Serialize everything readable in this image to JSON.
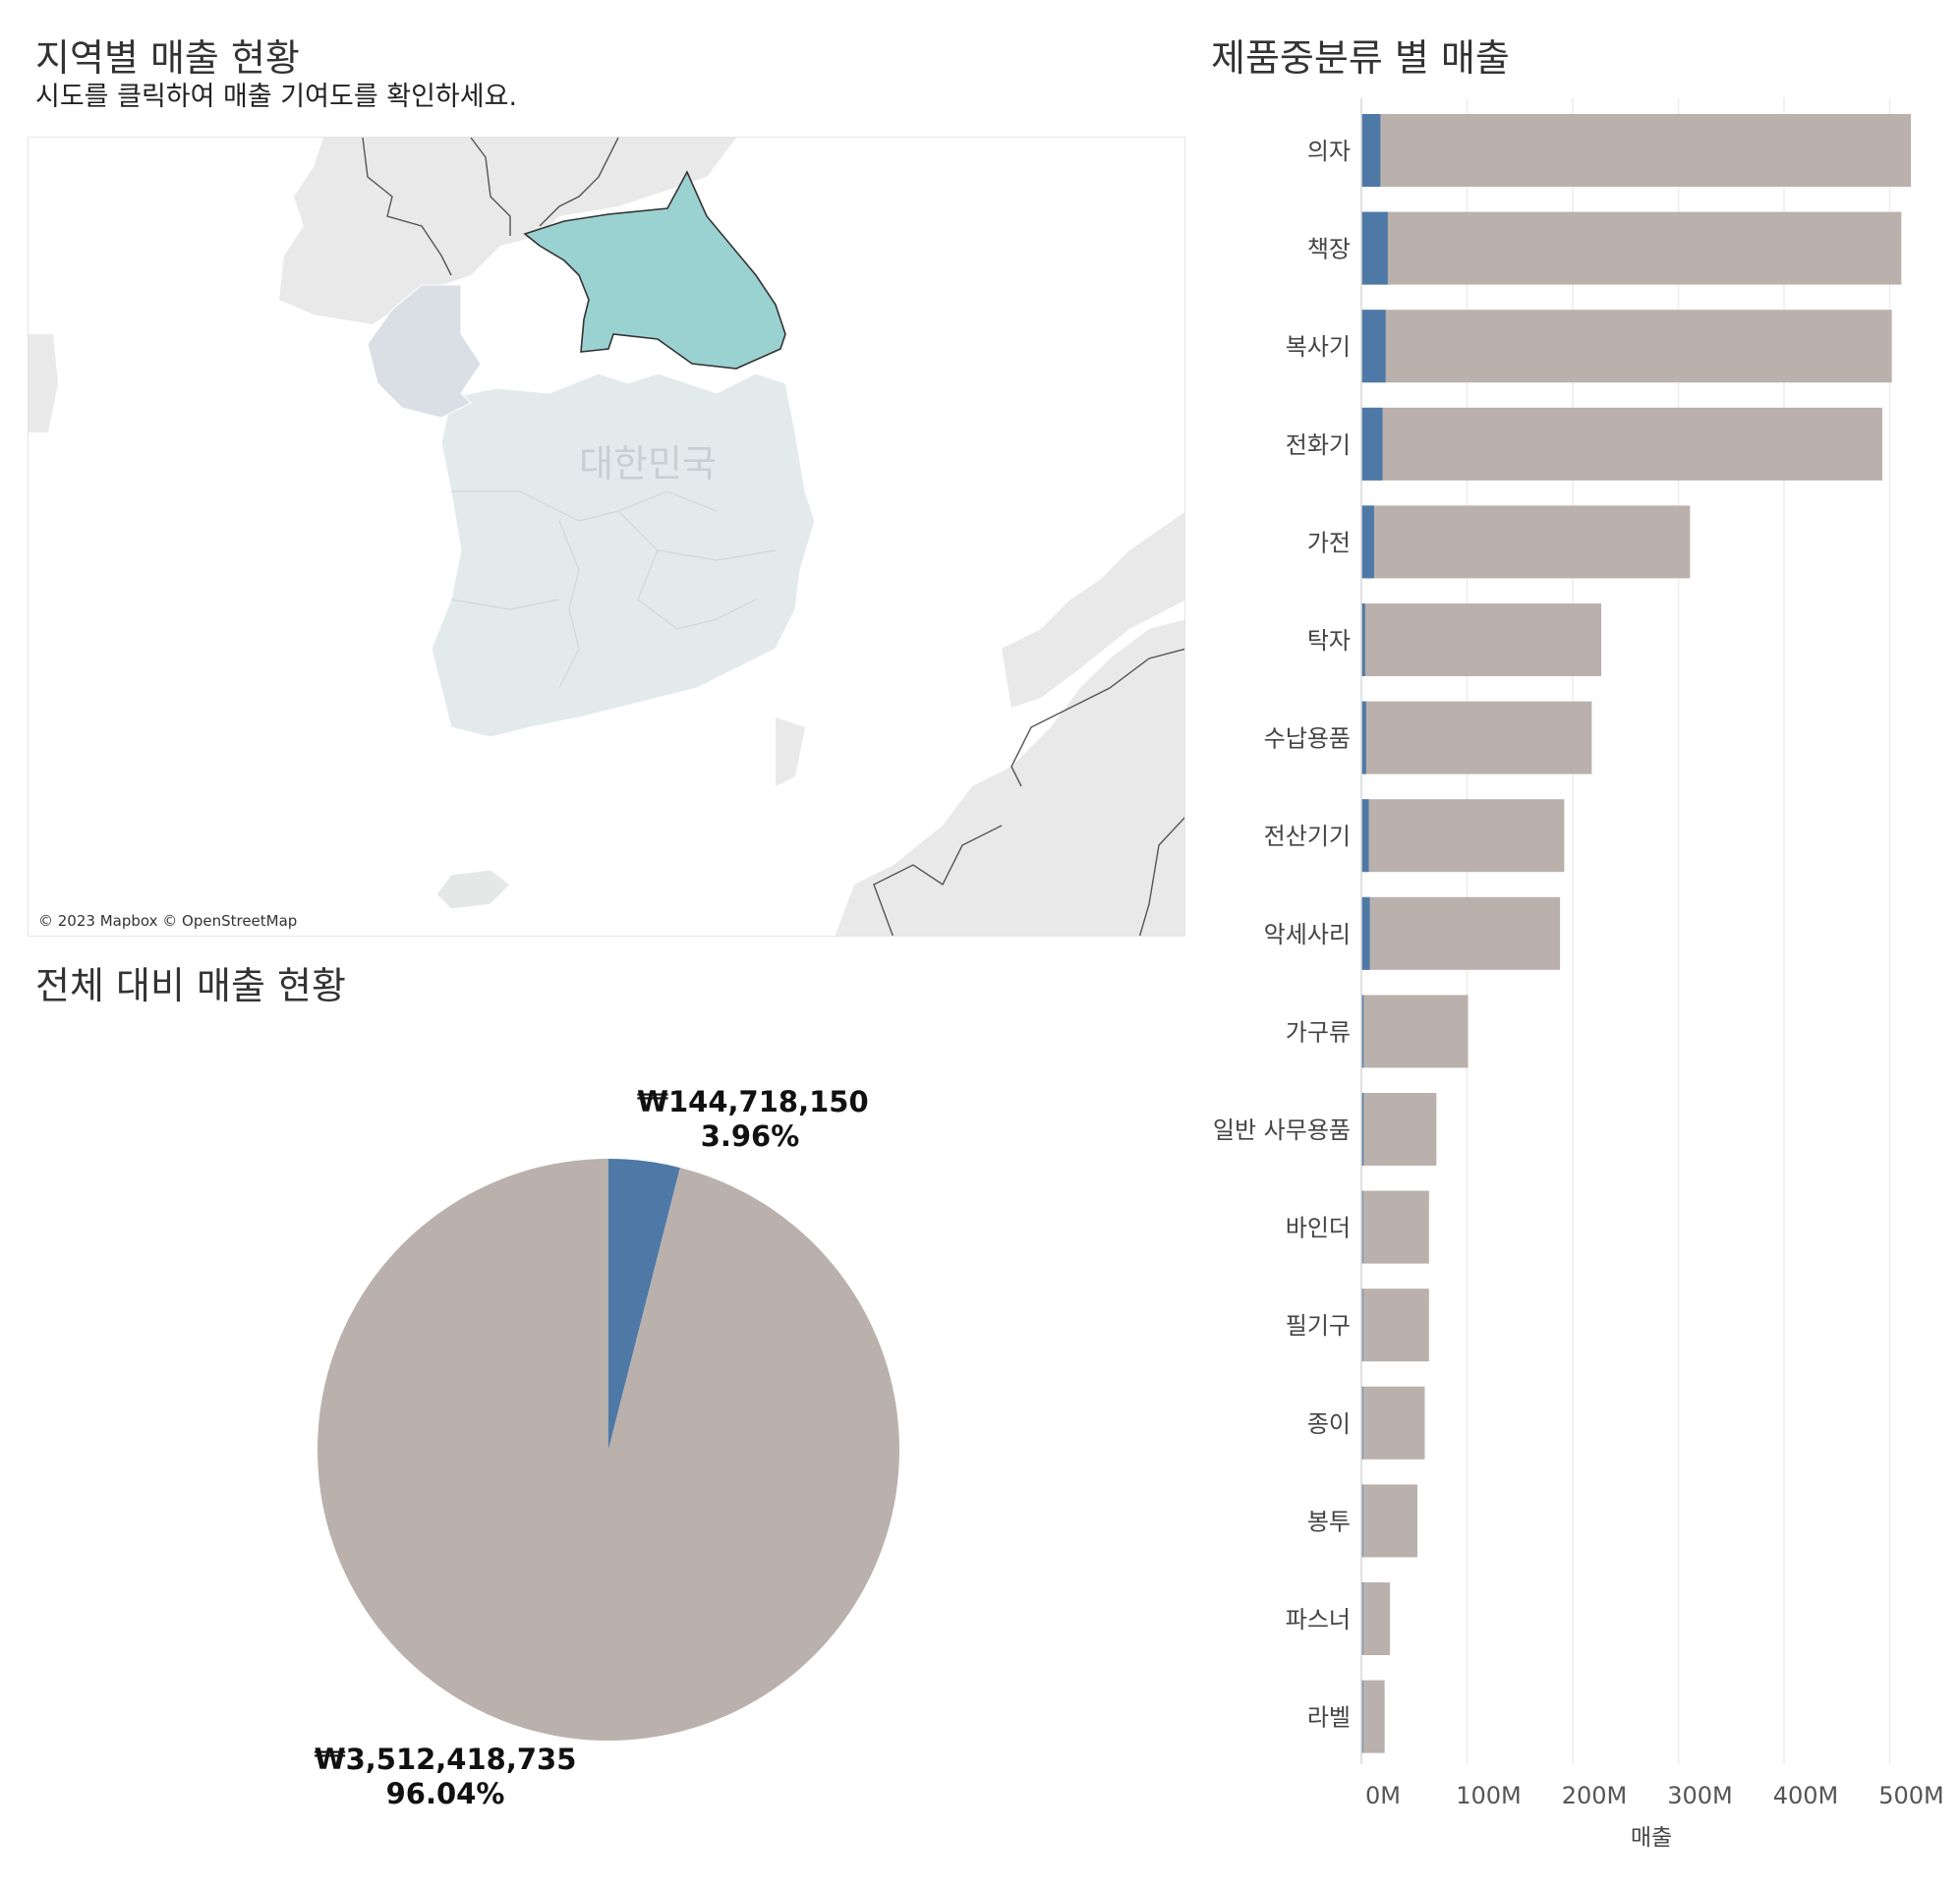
{
  "map_section": {
    "title": "지역별 매출 현황",
    "subtitle": "시도를 클릭하여 매출 기여도를 확인하세요.",
    "country_label": "대한민국",
    "attribution": "© 2023 Mapbox © OpenStreetMap",
    "selected_region_color": "#9ad2d2",
    "region_color": "#e2eaec"
  },
  "pie_section": {
    "title": "전체 대비 매출 현황",
    "selected": {
      "amount": "₩144,718,150",
      "percent": "3.96%",
      "value": 144718150,
      "color": "#4e79a7"
    },
    "rest": {
      "amount": "₩3,512,418,735",
      "percent": "96.04%",
      "value": 3512418735,
      "color": "#bab0ac"
    }
  },
  "bar_section": {
    "title": "제품중분류 별 매출"
  },
  "chart_data": [
    {
      "type": "pie",
      "title": "전체 대비 매출 현황",
      "slices": [
        {
          "label": "₩144,718,150",
          "percent": 3.96,
          "value": 144718150,
          "color": "#4e79a7"
        },
        {
          "label": "₩3,512,418,735",
          "percent": 96.04,
          "value": 3512418735,
          "color": "#bab0ac"
        }
      ]
    },
    {
      "type": "bar",
      "orientation": "horizontal",
      "title": "제품중분류 별 매출",
      "xlabel": "매출",
      "xlim": [
        0,
        540000000
      ],
      "xticks": [
        0,
        100000000,
        200000000,
        300000000,
        400000000,
        500000000
      ],
      "xtick_labels": [
        "0M",
        "100M",
        "200M",
        "300M",
        "400M",
        "500M"
      ],
      "categories": [
        "의자",
        "책장",
        "복사기",
        "전화기",
        "가전",
        "탁자",
        "수납용품",
        "전산기기",
        "악세사리",
        "가구류",
        "일반 사무용품",
        "바인더",
        "필기구",
        "종이",
        "봉투",
        "파스너",
        "라벨"
      ],
      "series": [
        {
          "color": "#bab0ac",
          "values": [
            520000000,
            511000000,
            502000000,
            493000000,
            311000000,
            227000000,
            218000000,
            192000000,
            188000000,
            101000000,
            71000000,
            64000000,
            64000000,
            60000000,
            53000000,
            27000000,
            22000000
          ]
        },
        {
          "color": "#4e79a7",
          "values": [
            18000000,
            25000000,
            23000000,
            20000000,
            12000000,
            3500000,
            4500000,
            7000000,
            8000000,
            2000000,
            2000000,
            1200000,
            1200000,
            1000000,
            1000000,
            500000,
            400000
          ]
        }
      ],
      "grid": true
    }
  ]
}
